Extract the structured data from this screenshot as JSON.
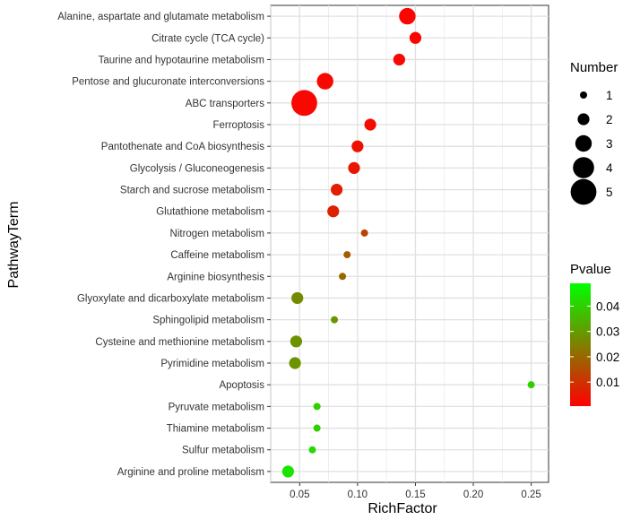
{
  "chart_data": {
    "type": "scatter",
    "xlabel": "RichFactor",
    "ylabel": "PathwayTerm",
    "xlim": [
      0.025,
      0.265
    ],
    "x_ticks": [
      {
        "value": 0.05,
        "label": "0.05"
      },
      {
        "value": 0.1,
        "label": "0.10"
      },
      {
        "value": 0.15,
        "label": "0.15"
      },
      {
        "value": 0.2,
        "label": "0.20"
      },
      {
        "value": 0.25,
        "label": "0.25"
      }
    ],
    "grid": true,
    "legend_position": "right",
    "points": [
      {
        "term": "Alanine, aspartate and glutamate metabolism",
        "rich_factor": 0.143,
        "number": 3,
        "pvalue": 0.0015
      },
      {
        "term": "Citrate cycle (TCA cycle)",
        "rich_factor": 0.15,
        "number": 2,
        "pvalue": 0.0015
      },
      {
        "term": "Taurine and hypotaurine metabolism",
        "rich_factor": 0.136,
        "number": 2,
        "pvalue": 0.002
      },
      {
        "term": "Pentose and glucuronate interconversions",
        "rich_factor": 0.072,
        "number": 3,
        "pvalue": 0.002
      },
      {
        "term": "ABC transporters",
        "rich_factor": 0.054,
        "number": 5,
        "pvalue": 0.002
      },
      {
        "term": "Ferroptosis",
        "rich_factor": 0.111,
        "number": 2,
        "pvalue": 0.003
      },
      {
        "term": "Pantothenate and CoA biosynthesis",
        "rich_factor": 0.1,
        "number": 2,
        "pvalue": 0.004
      },
      {
        "term": "Glycolysis / Gluconeogenesis",
        "rich_factor": 0.097,
        "number": 2,
        "pvalue": 0.0045
      },
      {
        "term": "Starch and sucrose metabolism",
        "rich_factor": 0.082,
        "number": 2,
        "pvalue": 0.006
      },
      {
        "term": "Glutathione metabolism",
        "rich_factor": 0.079,
        "number": 2,
        "pvalue": 0.007
      },
      {
        "term": "Nitrogen metabolism",
        "rich_factor": 0.106,
        "number": 1,
        "pvalue": 0.013
      },
      {
        "term": "Caffeine metabolism",
        "rich_factor": 0.091,
        "number": 1,
        "pvalue": 0.018
      },
      {
        "term": "Arginine biosynthesis",
        "rich_factor": 0.087,
        "number": 1,
        "pvalue": 0.02
      },
      {
        "term": "Glyoxylate and dicarboxylate metabolism",
        "rich_factor": 0.048,
        "number": 2,
        "pvalue": 0.027
      },
      {
        "term": "Sphingolipid metabolism",
        "rich_factor": 0.08,
        "number": 1,
        "pvalue": 0.029
      },
      {
        "term": "Cysteine and methionine metabolism",
        "rich_factor": 0.047,
        "number": 2,
        "pvalue": 0.028
      },
      {
        "term": "Pyrimidine metabolism",
        "rich_factor": 0.046,
        "number": 2,
        "pvalue": 0.0285
      },
      {
        "term": "Apoptosis",
        "rich_factor": 0.25,
        "number": 1,
        "pvalue": 0.04
      },
      {
        "term": "Pyruvate metabolism",
        "rich_factor": 0.065,
        "number": 1,
        "pvalue": 0.04
      },
      {
        "term": "Thiamine metabolism",
        "rich_factor": 0.065,
        "number": 1,
        "pvalue": 0.04
      },
      {
        "term": "Sulfur metabolism",
        "rich_factor": 0.061,
        "number": 1,
        "pvalue": 0.042
      },
      {
        "term": "Arginine and proline metabolism",
        "rich_factor": 0.04,
        "number": 2,
        "pvalue": 0.044
      }
    ],
    "size_legend": {
      "title": "Number",
      "items": [
        {
          "label": "1",
          "value": 1
        },
        {
          "label": "2",
          "value": 2
        },
        {
          "label": "3",
          "value": 3
        },
        {
          "label": "4",
          "value": 4
        },
        {
          "label": "5",
          "value": 5
        }
      ]
    },
    "color_legend": {
      "title": "Pvalue",
      "low_color": "#ff0000",
      "high_color": "#00ff00",
      "range": [
        0.0005,
        0.049
      ],
      "ticks": [
        {
          "label": "0.01",
          "value": 0.01
        },
        {
          "label": "0.02",
          "value": 0.02
        },
        {
          "label": "0.03",
          "value": 0.03
        },
        {
          "label": "0.04",
          "value": 0.04
        }
      ]
    }
  }
}
